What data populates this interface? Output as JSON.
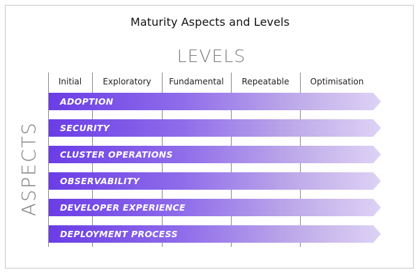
{
  "title": "Maturity Aspects and Levels",
  "levels_heading": "LEVELS",
  "aspects_heading": "ASPECTS",
  "levels": [
    "Initial",
    "Exploratory",
    "Fundamental",
    "Repeatable",
    "Optimisation"
  ],
  "aspects": [
    "ADOPTION",
    "SECURITY",
    "CLUSTER OPERATIONS",
    "OBSERVABILITY",
    "DEVELOPER EXPERIENCE",
    "DEPLOYMENT PROCESS"
  ],
  "colors": {
    "arrow_start": "#6a3de6",
    "arrow_end": "#ddd2f6",
    "heading_gray": "#7a7a7a"
  }
}
